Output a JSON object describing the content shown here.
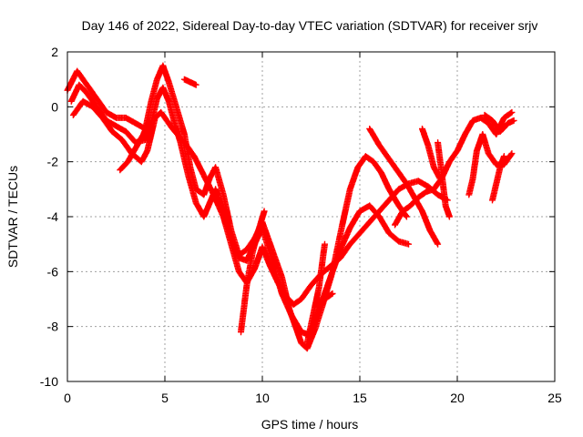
{
  "chart_data": {
    "type": "scatter",
    "title": "Day 146 of 2022, Sidereal Day-to-day VTEC variation (SDTVAR) for receiver srjv",
    "xlabel": "GPS time / hours",
    "ylabel": "SDTVAR / TECUs",
    "xlim": [
      0,
      25
    ],
    "ylim": [
      -10,
      2
    ],
    "xticks": [
      0,
      5,
      10,
      15,
      20,
      25
    ],
    "yticks": [
      -10,
      -8,
      -6,
      -4,
      -2,
      0,
      2
    ],
    "grid": true,
    "marker": "plus",
    "color": "#ff0000",
    "series": [
      {
        "points": [
          [
            0.0,
            0.6
          ],
          [
            0.5,
            1.3
          ],
          [
            1.0,
            0.8
          ],
          [
            1.5,
            0.3
          ],
          [
            2.0,
            -0.2
          ],
          [
            2.5,
            -0.4
          ],
          [
            3.0,
            -0.4
          ],
          [
            3.5,
            -0.6
          ],
          [
            4.0,
            -0.8
          ],
          [
            4.3,
            0.2
          ],
          [
            4.6,
            1.0
          ],
          [
            4.9,
            1.5
          ],
          [
            5.2,
            0.9
          ],
          [
            5.5,
            0.2
          ],
          [
            6.0,
            -1.0
          ],
          [
            6.3,
            -2.2
          ],
          [
            6.6,
            -3.0
          ],
          [
            7.0,
            -3.2
          ],
          [
            7.3,
            -2.6
          ],
          [
            7.6,
            -2.2
          ],
          [
            8.0,
            -3.2
          ],
          [
            8.4,
            -4.5
          ],
          [
            8.8,
            -5.4
          ],
          [
            9.2,
            -5.2
          ],
          [
            9.6,
            -4.8
          ],
          [
            10.0,
            -4.2
          ],
          [
            10.5,
            -5.2
          ],
          [
            11.0,
            -6.2
          ],
          [
            11.4,
            -7.4
          ],
          [
            11.7,
            -8.0
          ],
          [
            12.0,
            -8.6
          ],
          [
            12.3,
            -8.8
          ],
          [
            12.7,
            -8.1
          ],
          [
            13.1,
            -7.2
          ],
          [
            13.6,
            -6.0
          ],
          [
            14.1,
            -4.3
          ],
          [
            14.5,
            -3.0
          ],
          [
            14.9,
            -2.2
          ],
          [
            15.3,
            -1.8
          ],
          [
            15.7,
            -2.0
          ],
          [
            16.1,
            -2.4
          ],
          [
            16.5,
            -3.0
          ],
          [
            17.0,
            -3.6
          ],
          [
            17.4,
            -4.0
          ]
        ]
      },
      {
        "points": [
          [
            0.2,
            0.2
          ],
          [
            0.6,
            0.8
          ],
          [
            1.0,
            0.5
          ],
          [
            1.5,
            0.0
          ],
          [
            2.0,
            -0.5
          ],
          [
            2.5,
            -0.7
          ],
          [
            3.0,
            -0.9
          ],
          [
            3.5,
            -1.3
          ],
          [
            4.0,
            -1.2
          ],
          [
            4.3,
            -0.6
          ],
          [
            4.6,
            0.3
          ],
          [
            4.9,
            0.7
          ],
          [
            5.2,
            0.2
          ],
          [
            5.5,
            -0.6
          ],
          [
            5.8,
            -1.3
          ],
          [
            6.2,
            -2.5
          ],
          [
            6.6,
            -3.5
          ],
          [
            7.0,
            -4.0
          ],
          [
            7.3,
            -3.5
          ],
          [
            7.6,
            -3.0
          ],
          [
            8.0,
            -3.8
          ],
          [
            8.4,
            -4.8
          ],
          [
            8.8,
            -5.5
          ],
          [
            9.2,
            -5.6
          ],
          [
            9.6,
            -5.0
          ],
          [
            10.0,
            -4.4
          ],
          [
            10.5,
            -5.6
          ],
          [
            11.0,
            -6.8
          ],
          [
            11.5,
            -7.6
          ],
          [
            12.0,
            -8.2
          ],
          [
            12.4,
            -8.3
          ],
          [
            12.8,
            -7.6
          ],
          [
            13.2,
            -6.8
          ],
          [
            13.6,
            -6.0
          ],
          [
            14.0,
            -5.2
          ],
          [
            14.5,
            -4.4
          ],
          [
            15.0,
            -3.8
          ],
          [
            15.5,
            -3.6
          ],
          [
            16.0,
            -4.0
          ],
          [
            16.5,
            -4.6
          ],
          [
            17.0,
            -4.9
          ],
          [
            17.5,
            -5.0
          ]
        ]
      },
      {
        "points": [
          [
            0.3,
            -0.3
          ],
          [
            0.8,
            0.2
          ],
          [
            1.3,
            0.0
          ],
          [
            1.8,
            -0.4
          ],
          [
            2.3,
            -0.9
          ],
          [
            2.8,
            -1.2
          ],
          [
            3.3,
            -1.7
          ],
          [
            3.8,
            -2.0
          ],
          [
            4.1,
            -1.6
          ],
          [
            4.5,
            -0.4
          ],
          [
            4.8,
            -0.2
          ],
          [
            5.1,
            -0.5
          ],
          [
            5.4,
            -0.8
          ],
          [
            6.0,
            -1.3
          ],
          [
            6.5,
            -1.8
          ],
          [
            7.0,
            -2.5
          ],
          [
            7.5,
            -3.2
          ],
          [
            8.0,
            -4.0
          ],
          [
            8.4,
            -5.0
          ],
          [
            8.8,
            -6.0
          ],
          [
            9.2,
            -6.4
          ],
          [
            9.6,
            -5.9
          ],
          [
            10.0,
            -5.1
          ],
          [
            10.4,
            -5.8
          ],
          [
            10.8,
            -6.4
          ],
          [
            11.2,
            -6.9
          ],
          [
            11.6,
            -7.2
          ],
          [
            12.0,
            -7.0
          ],
          [
            12.5,
            -6.5
          ],
          [
            13.0,
            -6.1
          ],
          [
            13.5,
            -5.8
          ],
          [
            14.0,
            -5.5
          ],
          [
            14.5,
            -5.0
          ],
          [
            15.0,
            -4.6
          ],
          [
            15.5,
            -4.2
          ],
          [
            16.0,
            -3.8
          ],
          [
            16.5,
            -3.4
          ],
          [
            17.0,
            -3.0
          ],
          [
            17.5,
            -2.8
          ],
          [
            18.0,
            -2.7
          ],
          [
            18.5,
            -2.9
          ],
          [
            19.0,
            -3.2
          ],
          [
            19.5,
            -3.4
          ]
        ]
      },
      {
        "points": [
          [
            6.0,
            1.0
          ],
          [
            6.3,
            0.9
          ],
          [
            6.6,
            0.8
          ]
        ]
      },
      {
        "points": [
          [
            2.7,
            -2.3
          ],
          [
            3.1,
            -2.0
          ],
          [
            3.5,
            -1.5
          ],
          [
            3.9,
            -1.0
          ],
          [
            4.2,
            -0.5
          ]
        ]
      },
      {
        "points": [
          [
            8.9,
            -8.2
          ],
          [
            9.2,
            -6.5
          ],
          [
            9.5,
            -5.3
          ],
          [
            9.8,
            -4.5
          ],
          [
            10.1,
            -3.8
          ]
        ]
      },
      {
        "points": [
          [
            12.3,
            -8.6
          ],
          [
            12.6,
            -7.6
          ],
          [
            12.9,
            -6.6
          ],
          [
            13.2,
            -5.0
          ]
        ]
      },
      {
        "points": [
          [
            12.8,
            -7.2
          ],
          [
            13.2,
            -7.0
          ],
          [
            13.6,
            -6.8
          ]
        ]
      },
      {
        "points": [
          [
            15.5,
            -0.8
          ],
          [
            16.0,
            -1.4
          ],
          [
            16.5,
            -1.9
          ],
          [
            17.0,
            -2.4
          ],
          [
            17.4,
            -2.8
          ],
          [
            17.8,
            -3.3
          ],
          [
            18.2,
            -3.8
          ],
          [
            18.6,
            -4.5
          ],
          [
            19.0,
            -5.0
          ]
        ]
      },
      {
        "points": [
          [
            16.8,
            -4.3
          ],
          [
            17.2,
            -3.8
          ],
          [
            17.6,
            -3.6
          ],
          [
            18.0,
            -3.3
          ],
          [
            18.4,
            -3.1
          ],
          [
            18.8,
            -3.0
          ],
          [
            19.2,
            -2.6
          ],
          [
            19.6,
            -2.0
          ],
          [
            20.0,
            -1.6
          ],
          [
            20.4,
            -1.0
          ],
          [
            20.8,
            -0.5
          ],
          [
            21.2,
            -0.4
          ],
          [
            21.6,
            -0.6
          ],
          [
            22.0,
            -1.0
          ],
          [
            22.4,
            -0.4
          ],
          [
            22.8,
            -0.2
          ]
        ]
      },
      {
        "points": [
          [
            18.2,
            -0.8
          ],
          [
            18.5,
            -1.4
          ],
          [
            18.8,
            -2.2
          ],
          [
            19.1,
            -2.6
          ]
        ]
      },
      {
        "points": [
          [
            19.0,
            -1.3
          ],
          [
            19.2,
            -2.4
          ],
          [
            19.4,
            -3.6
          ],
          [
            19.6,
            -4.0
          ]
        ]
      },
      {
        "points": [
          [
            20.6,
            -3.2
          ],
          [
            20.8,
            -2.6
          ],
          [
            21.0,
            -1.6
          ],
          [
            21.3,
            -1.0
          ],
          [
            21.6,
            -1.7
          ],
          [
            22.0,
            -2.1
          ],
          [
            22.4,
            -2.1
          ],
          [
            22.8,
            -1.7
          ]
        ]
      },
      {
        "points": [
          [
            21.4,
            -0.3
          ],
          [
            21.8,
            -0.5
          ],
          [
            22.2,
            -0.9
          ],
          [
            22.6,
            -0.6
          ],
          [
            22.9,
            -0.5
          ]
        ]
      },
      {
        "points": [
          [
            21.8,
            -3.4
          ],
          [
            22.0,
            -2.8
          ],
          [
            22.2,
            -2.2
          ],
          [
            22.4,
            -1.8
          ]
        ]
      }
    ]
  }
}
